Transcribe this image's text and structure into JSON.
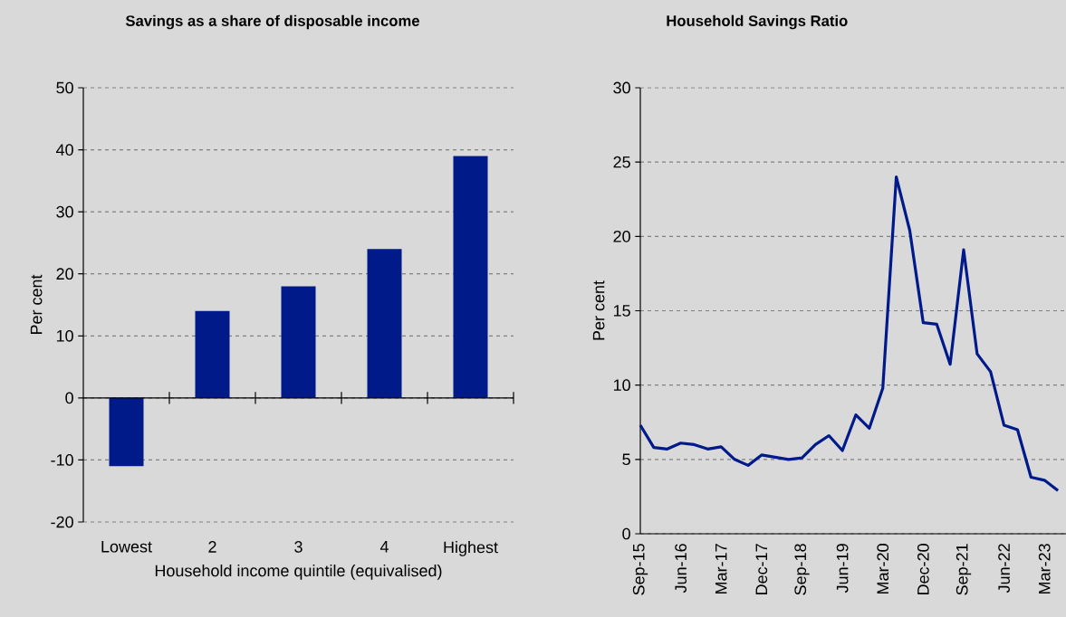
{
  "chart_data": [
    {
      "type": "bar",
      "title": "Savings as a share of disposable income",
      "xlabel": "Household income quintile (equivalised)",
      "ylabel": "Per cent",
      "categories": [
        "Lowest",
        "2",
        "3",
        "4",
        "Highest"
      ],
      "values": [
        -11,
        14,
        18,
        24,
        39
      ],
      "color": "#001a8a",
      "ylim": [
        -20,
        50
      ],
      "yticks": [
        -20,
        -10,
        0,
        10,
        20,
        30,
        40,
        50
      ],
      "grid": "y"
    },
    {
      "type": "line",
      "title": "Household Savings Ratio",
      "ylabel": "Per cent",
      "categories": [
        "Sep-15",
        null,
        null,
        "Jun-16",
        null,
        null,
        "Mar-17",
        null,
        null,
        "Dec-17",
        null,
        null,
        "Sep-18",
        null,
        null,
        "Jun-19",
        null,
        null,
        "Mar-20",
        null,
        null,
        "Dec-20",
        null,
        null,
        "Sep-21",
        null,
        null,
        "Jun-22",
        null,
        null,
        "Mar-23",
        null
      ],
      "values": [
        7.3,
        5.8,
        5.7,
        6.1,
        6.0,
        5.7,
        5.85,
        5.0,
        4.6,
        5.3,
        5.15,
        5.0,
        5.1,
        6.0,
        6.6,
        5.6,
        8.0,
        7.1,
        9.8,
        24.0,
        20.4,
        14.2,
        14.1,
        11.4,
        19.1,
        12.1,
        10.9,
        7.3,
        7.0,
        3.8,
        3.6,
        2.9
      ],
      "color": "#001a8a",
      "ylim": [
        0,
        30
      ],
      "yticks": [
        0,
        5,
        10,
        15,
        20,
        25,
        30
      ],
      "grid": "y"
    }
  ]
}
